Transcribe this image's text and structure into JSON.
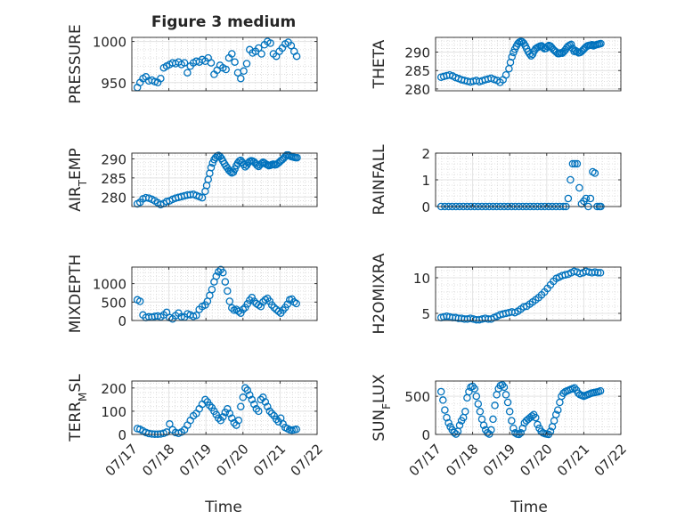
{
  "figure": {
    "title": "Figure 3 medium",
    "x_axis_label": "Time",
    "marker_color": "#0072BD",
    "x_tick_labels": [
      "07/17",
      "07/18",
      "07/19",
      "07/20",
      "07/21",
      "07/22"
    ]
  },
  "chart_data": [
    {
      "type": "scatter",
      "ylabel": "PRESSURE",
      "ylim": [
        940,
        1005
      ],
      "yticks": [
        950,
        1000
      ],
      "xlabel": "",
      "xlim": [
        0,
        5
      ],
      "grid": true,
      "minor_grid": true,
      "x": [
        0.15,
        0.22,
        0.3,
        0.38,
        0.46,
        0.54,
        0.62,
        0.7,
        0.78,
        0.86,
        0.94,
        1.02,
        1.1,
        1.18,
        1.26,
        1.34,
        1.42,
        1.5,
        1.58,
        1.66,
        1.74,
        1.82,
        1.9,
        1.98,
        2.06,
        2.14,
        2.22,
        2.3,
        2.38,
        2.46,
        2.54,
        2.62,
        2.7,
        2.78,
        2.86,
        2.94,
        3.02,
        3.1,
        3.18,
        3.26,
        3.34,
        3.42,
        3.5,
        3.58,
        3.66,
        3.74,
        3.82,
        3.9,
        3.98,
        4.06,
        4.14,
        4.22,
        4.3,
        4.38,
        4.45
      ],
      "y": [
        944,
        950,
        955,
        957,
        952,
        953,
        951,
        950,
        955,
        968,
        970,
        972,
        974,
        973,
        975,
        972,
        974,
        962,
        970,
        974,
        976,
        975,
        978,
        976,
        980,
        974,
        960,
        965,
        971,
        968,
        966,
        980,
        985,
        975,
        962,
        955,
        964,
        973,
        990,
        986,
        988,
        992,
        985,
        996,
        1000,
        998,
        985,
        982,
        988,
        992,
        997,
        999,
        995,
        988,
        982
      ]
    },
    {
      "type": "scatter",
      "ylabel": "THETA",
      "ylim": [
        279.5,
        294
      ],
      "yticks": [
        280,
        285,
        290
      ],
      "xlabel": "",
      "xlim": [
        0,
        5
      ],
      "grid": true,
      "minor_grid": true,
      "x": [
        0.15,
        0.22,
        0.3,
        0.38,
        0.46,
        0.54,
        0.62,
        0.7,
        0.78,
        0.86,
        0.94,
        1.02,
        1.1,
        1.18,
        1.26,
        1.34,
        1.42,
        1.5,
        1.58,
        1.66,
        1.74,
        1.82,
        1.9,
        1.98,
        2.02,
        2.06,
        2.1,
        2.14,
        2.18,
        2.22,
        2.26,
        2.3,
        2.34,
        2.38,
        2.42,
        2.46,
        2.5,
        2.54,
        2.58,
        2.62,
        2.66,
        2.7,
        2.74,
        2.78,
        2.82,
        2.86,
        2.9,
        2.94,
        2.98,
        3.02,
        3.06,
        3.1,
        3.14,
        3.18,
        3.22,
        3.26,
        3.3,
        3.34,
        3.38,
        3.42,
        3.46,
        3.5,
        3.54,
        3.58,
        3.62,
        3.66,
        3.7,
        3.74,
        3.78,
        3.82,
        3.86,
        3.9,
        3.94,
        3.98,
        4.02,
        4.06,
        4.1,
        4.14,
        4.18,
        4.22,
        4.26,
        4.3,
        4.34,
        4.38,
        4.42,
        4.46
      ],
      "y": [
        283.2,
        283.4,
        283.6,
        283.8,
        283.5,
        283.1,
        282.8,
        282.5,
        282.3,
        282.1,
        281.9,
        282.1,
        282.3,
        282.0,
        282.2,
        282.5,
        282.7,
        282.9,
        282.6,
        282.3,
        281.8,
        282.5,
        283.8,
        285.5,
        287.2,
        288.7,
        289.9,
        290.8,
        291.6,
        292.3,
        292.7,
        292.9,
        292.8,
        292.4,
        291.7,
        290.9,
        290.1,
        289.5,
        289.0,
        289.4,
        290.3,
        290.9,
        291.2,
        291.4,
        291.6,
        291.7,
        291.3,
        290.9,
        291.0,
        291.5,
        291.8,
        291.6,
        291.2,
        290.7,
        290.3,
        290.0,
        289.6,
        289.6,
        289.8,
        289.7,
        290.1,
        290.6,
        291.2,
        291.6,
        291.9,
        292.1,
        291.0,
        290.2,
        290.4,
        290.1,
        289.8,
        289.9,
        290.2,
        290.6,
        291.0,
        291.4,
        291.7,
        291.8,
        291.9,
        292.0,
        291.7,
        291.9,
        292.0,
        292.1,
        292.2,
        292.3
      ]
    },
    {
      "type": "scatter",
      "ylabel": "AIR_TEMP",
      "ylim": [
        277.5,
        291.5
      ],
      "yticks": [
        280,
        285,
        290
      ],
      "xlabel": "",
      "xlim": [
        0,
        5
      ],
      "grid": true,
      "minor_grid": true,
      "x": [
        0.15,
        0.22,
        0.3,
        0.38,
        0.46,
        0.54,
        0.62,
        0.7,
        0.78,
        0.86,
        0.94,
        1.02,
        1.1,
        1.18,
        1.26,
        1.34,
        1.42,
        1.5,
        1.58,
        1.66,
        1.74,
        1.82,
        1.9,
        1.98,
        2.02,
        2.06,
        2.1,
        2.14,
        2.18,
        2.22,
        2.26,
        2.3,
        2.34,
        2.38,
        2.42,
        2.46,
        2.5,
        2.54,
        2.58,
        2.62,
        2.66,
        2.7,
        2.74,
        2.78,
        2.82,
        2.86,
        2.9,
        2.94,
        2.98,
        3.02,
        3.06,
        3.1,
        3.14,
        3.18,
        3.22,
        3.26,
        3.3,
        3.34,
        3.38,
        3.42,
        3.46,
        3.5,
        3.54,
        3.58,
        3.62,
        3.66,
        3.7,
        3.74,
        3.78,
        3.82,
        3.86,
        3.9,
        3.94,
        3.98,
        4.02,
        4.06,
        4.1,
        4.14,
        4.18,
        4.22,
        4.26,
        4.3,
        4.34,
        4.38,
        4.42,
        4.46
      ],
      "y": [
        278.2,
        278.6,
        279.5,
        279.8,
        279.7,
        279.4,
        279.0,
        278.5,
        278.0,
        278.3,
        278.8,
        279.0,
        279.4,
        279.7,
        279.9,
        280.1,
        280.3,
        280.5,
        280.6,
        280.7,
        280.4,
        280.1,
        279.8,
        281.5,
        283.0,
        284.6,
        286.2,
        287.7,
        288.9,
        289.8,
        290.3,
        290.7,
        290.9,
        290.6,
        290.1,
        289.4,
        288.7,
        288.1,
        287.6,
        287.0,
        286.6,
        286.3,
        286.5,
        287.3,
        288.2,
        288.9,
        289.4,
        289.6,
        289.1,
        288.5,
        287.9,
        288.3,
        288.9,
        289.3,
        289.5,
        289.4,
        289.2,
        288.8,
        288.3,
        288.0,
        288.4,
        288.8,
        289.1,
        288.9,
        288.6,
        288.4,
        288.2,
        288.3,
        288.5,
        288.6,
        288.4,
        288.5,
        288.8,
        289.1,
        289.5,
        289.8,
        290.2,
        290.6,
        291.0,
        291.0,
        290.8,
        290.6,
        290.5,
        290.4,
        290.3,
        290.3
      ]
    },
    {
      "type": "scatter",
      "ylabel": "RAINFALL",
      "ylim": [
        0,
        2
      ],
      "yticks": [
        0,
        1,
        2
      ],
      "xlabel": "",
      "xlim": [
        0,
        5
      ],
      "grid": true,
      "minor_grid": true,
      "x": [
        0.15,
        0.25,
        0.35,
        0.45,
        0.55,
        0.65,
        0.75,
        0.85,
        0.95,
        1.05,
        1.15,
        1.25,
        1.35,
        1.45,
        1.55,
        1.65,
        1.75,
        1.85,
        1.95,
        2.05,
        2.15,
        2.25,
        2.35,
        2.45,
        2.55,
        2.65,
        2.75,
        2.85,
        2.95,
        3.05,
        3.15,
        3.25,
        3.35,
        3.45,
        3.52,
        3.58,
        3.64,
        3.7,
        3.76,
        3.82,
        3.88,
        3.94,
        4.0,
        4.06,
        4.12,
        4.18,
        4.24,
        4.3,
        4.36,
        4.42,
        4.46
      ],
      "y": [
        0,
        0,
        0,
        0,
        0,
        0,
        0,
        0,
        0,
        0,
        0,
        0,
        0,
        0,
        0,
        0,
        0,
        0,
        0,
        0,
        0,
        0,
        0,
        0,
        0,
        0,
        0,
        0,
        0,
        0,
        0,
        0,
        0,
        0,
        0,
        0.3,
        1.0,
        1.6,
        1.6,
        1.6,
        0.7,
        0.1,
        0.2,
        0.3,
        0,
        0.3,
        1.3,
        1.25,
        0,
        0,
        0
      ]
    },
    {
      "type": "scatter",
      "ylabel": "MIXDEPTH",
      "ylim": [
        0,
        1450
      ],
      "yticks": [
        0,
        500,
        1000
      ],
      "xlabel": "",
      "xlim": [
        0,
        5
      ],
      "grid": true,
      "minor_grid": true,
      "x": [
        0.15,
        0.22,
        0.3,
        0.38,
        0.46,
        0.54,
        0.62,
        0.7,
        0.78,
        0.86,
        0.94,
        1.02,
        1.1,
        1.18,
        1.26,
        1.34,
        1.42,
        1.5,
        1.58,
        1.66,
        1.74,
        1.82,
        1.9,
        1.98,
        2.04,
        2.1,
        2.16,
        2.22,
        2.28,
        2.34,
        2.4,
        2.46,
        2.52,
        2.58,
        2.64,
        2.7,
        2.76,
        2.82,
        2.88,
        2.94,
        3.0,
        3.06,
        3.12,
        3.18,
        3.24,
        3.3,
        3.36,
        3.42,
        3.48,
        3.54,
        3.6,
        3.66,
        3.72,
        3.78,
        3.84,
        3.9,
        3.96,
        4.02,
        4.08,
        4.14,
        4.2,
        4.26,
        4.32,
        4.38,
        4.44
      ],
      "y": [
        560,
        520,
        150,
        80,
        100,
        90,
        110,
        120,
        100,
        150,
        220,
        80,
        40,
        130,
        200,
        100,
        90,
        180,
        150,
        110,
        140,
        300,
        380,
        420,
        520,
        680,
        840,
        1050,
        1200,
        1320,
        1380,
        1300,
        1050,
        800,
        520,
        340,
        280,
        300,
        250,
        200,
        300,
        350,
        450,
        550,
        620,
        520,
        460,
        420,
        380,
        500,
        560,
        600,
        520,
        420,
        350,
        300,
        250,
        200,
        280,
        350,
        440,
        560,
        580,
        500,
        460
      ]
    },
    {
      "type": "scatter",
      "ylabel": "H2OMIXRA",
      "ylim": [
        4,
        11.5
      ],
      "yticks": [
        5,
        10
      ],
      "xlabel": "",
      "xlim": [
        0,
        5
      ],
      "grid": true,
      "minor_grid": true,
      "x": [
        0.15,
        0.22,
        0.3,
        0.38,
        0.46,
        0.54,
        0.62,
        0.7,
        0.78,
        0.86,
        0.94,
        1.02,
        1.1,
        1.18,
        1.26,
        1.34,
        1.42,
        1.5,
        1.58,
        1.66,
        1.74,
        1.82,
        1.9,
        1.98,
        2.06,
        2.14,
        2.22,
        2.3,
        2.38,
        2.46,
        2.54,
        2.62,
        2.7,
        2.78,
        2.86,
        2.94,
        3.02,
        3.1,
        3.18,
        3.26,
        3.34,
        3.42,
        3.5,
        3.58,
        3.66,
        3.74,
        3.82,
        3.9,
        3.98,
        4.06,
        4.14,
        4.22,
        4.3,
        4.38,
        4.45
      ],
      "y": [
        4.4,
        4.5,
        4.6,
        4.5,
        4.4,
        4.4,
        4.3,
        4.3,
        4.2,
        4.2,
        4.3,
        4.2,
        4.1,
        4.1,
        4.2,
        4.3,
        4.2,
        4.2,
        4.4,
        4.6,
        4.8,
        4.9,
        5.0,
        5.1,
        5.2,
        5.1,
        5.3,
        5.6,
        5.9,
        6.0,
        6.3,
        6.6,
        6.9,
        7.2,
        7.6,
        8.0,
        8.5,
        9.0,
        9.5,
        9.9,
        10.1,
        10.3,
        10.4,
        10.5,
        10.7,
        10.9,
        10.8,
        10.6,
        10.7,
        10.9,
        10.8,
        10.7,
        10.8,
        10.7,
        10.7
      ]
    },
    {
      "type": "scatter",
      "ylabel": "TERR_MSL",
      "ylim": [
        0,
        230
      ],
      "yticks": [
        0,
        100,
        200
      ],
      "xlabel": "Time",
      "xlim": [
        0,
        5
      ],
      "grid": true,
      "minor_grid": true,
      "x": [
        0.15,
        0.22,
        0.3,
        0.38,
        0.46,
        0.54,
        0.62,
        0.7,
        0.78,
        0.86,
        0.94,
        1.02,
        1.1,
        1.18,
        1.26,
        1.34,
        1.42,
        1.5,
        1.58,
        1.66,
        1.74,
        1.82,
        1.9,
        1.98,
        2.04,
        2.1,
        2.16,
        2.22,
        2.28,
        2.34,
        2.4,
        2.46,
        2.52,
        2.58,
        2.64,
        2.7,
        2.76,
        2.82,
        2.88,
        2.94,
        3.0,
        3.06,
        3.12,
        3.18,
        3.24,
        3.3,
        3.36,
        3.42,
        3.48,
        3.54,
        3.6,
        3.66,
        3.72,
        3.78,
        3.84,
        3.9,
        3.96,
        4.02,
        4.08,
        4.14,
        4.2,
        4.26,
        4.32,
        4.38,
        4.44
      ],
      "y": [
        25,
        22,
        15,
        8,
        4,
        2,
        1,
        1,
        2,
        5,
        10,
        45,
        20,
        8,
        5,
        10,
        20,
        40,
        60,
        80,
        90,
        110,
        130,
        150,
        140,
        125,
        115,
        100,
        85,
        70,
        60,
        75,
        95,
        110,
        90,
        70,
        50,
        40,
        60,
        120,
        160,
        200,
        190,
        170,
        150,
        130,
        110,
        100,
        150,
        160,
        140,
        120,
        100,
        90,
        80,
        65,
        55,
        70,
        45,
        30,
        25,
        20,
        18,
        20,
        22
      ]
    },
    {
      "type": "scatter",
      "ylabel": "SUN_FLUX",
      "ylim": [
        0,
        700
      ],
      "yticks": [
        0,
        500
      ],
      "xlabel": "Time",
      "xlim": [
        0,
        5
      ],
      "grid": true,
      "minor_grid": true,
      "x": [
        0.15,
        0.2,
        0.25,
        0.3,
        0.35,
        0.4,
        0.45,
        0.5,
        0.55,
        0.6,
        0.65,
        0.7,
        0.75,
        0.8,
        0.85,
        0.9,
        0.95,
        1.0,
        1.05,
        1.1,
        1.15,
        1.2,
        1.25,
        1.3,
        1.35,
        1.4,
        1.45,
        1.5,
        1.55,
        1.6,
        1.65,
        1.7,
        1.75,
        1.8,
        1.85,
        1.9,
        1.95,
        2.0,
        2.05,
        2.1,
        2.15,
        2.2,
        2.25,
        2.3,
        2.35,
        2.4,
        2.45,
        2.5,
        2.55,
        2.6,
        2.65,
        2.7,
        2.75,
        2.8,
        2.85,
        2.9,
        2.95,
        3.0,
        3.05,
        3.1,
        3.15,
        3.2,
        3.25,
        3.3,
        3.35,
        3.4,
        3.45,
        3.5,
        3.55,
        3.6,
        3.65,
        3.7,
        3.75,
        3.8,
        3.85,
        3.9,
        3.95,
        4.0,
        4.05,
        4.1,
        4.15,
        4.2,
        4.25,
        4.3,
        4.35,
        4.4,
        4.45
      ],
      "y": [
        560,
        450,
        320,
        220,
        150,
        100,
        60,
        25,
        5,
        40,
        120,
        180,
        220,
        300,
        480,
        560,
        620,
        630,
        600,
        500,
        400,
        300,
        200,
        120,
        60,
        20,
        5,
        60,
        200,
        380,
        520,
        600,
        640,
        650,
        620,
        520,
        420,
        300,
        180,
        80,
        20,
        5,
        0,
        20,
        80,
        150,
        180,
        200,
        220,
        240,
        260,
        220,
        130,
        80,
        40,
        20,
        10,
        5,
        0,
        40,
        100,
        180,
        260,
        320,
        420,
        500,
        540,
        560,
        570,
        580,
        590,
        600,
        610,
        580,
        540,
        520,
        510,
        500,
        510,
        520,
        530,
        540,
        545,
        550,
        555,
        560,
        570
      ]
    }
  ]
}
